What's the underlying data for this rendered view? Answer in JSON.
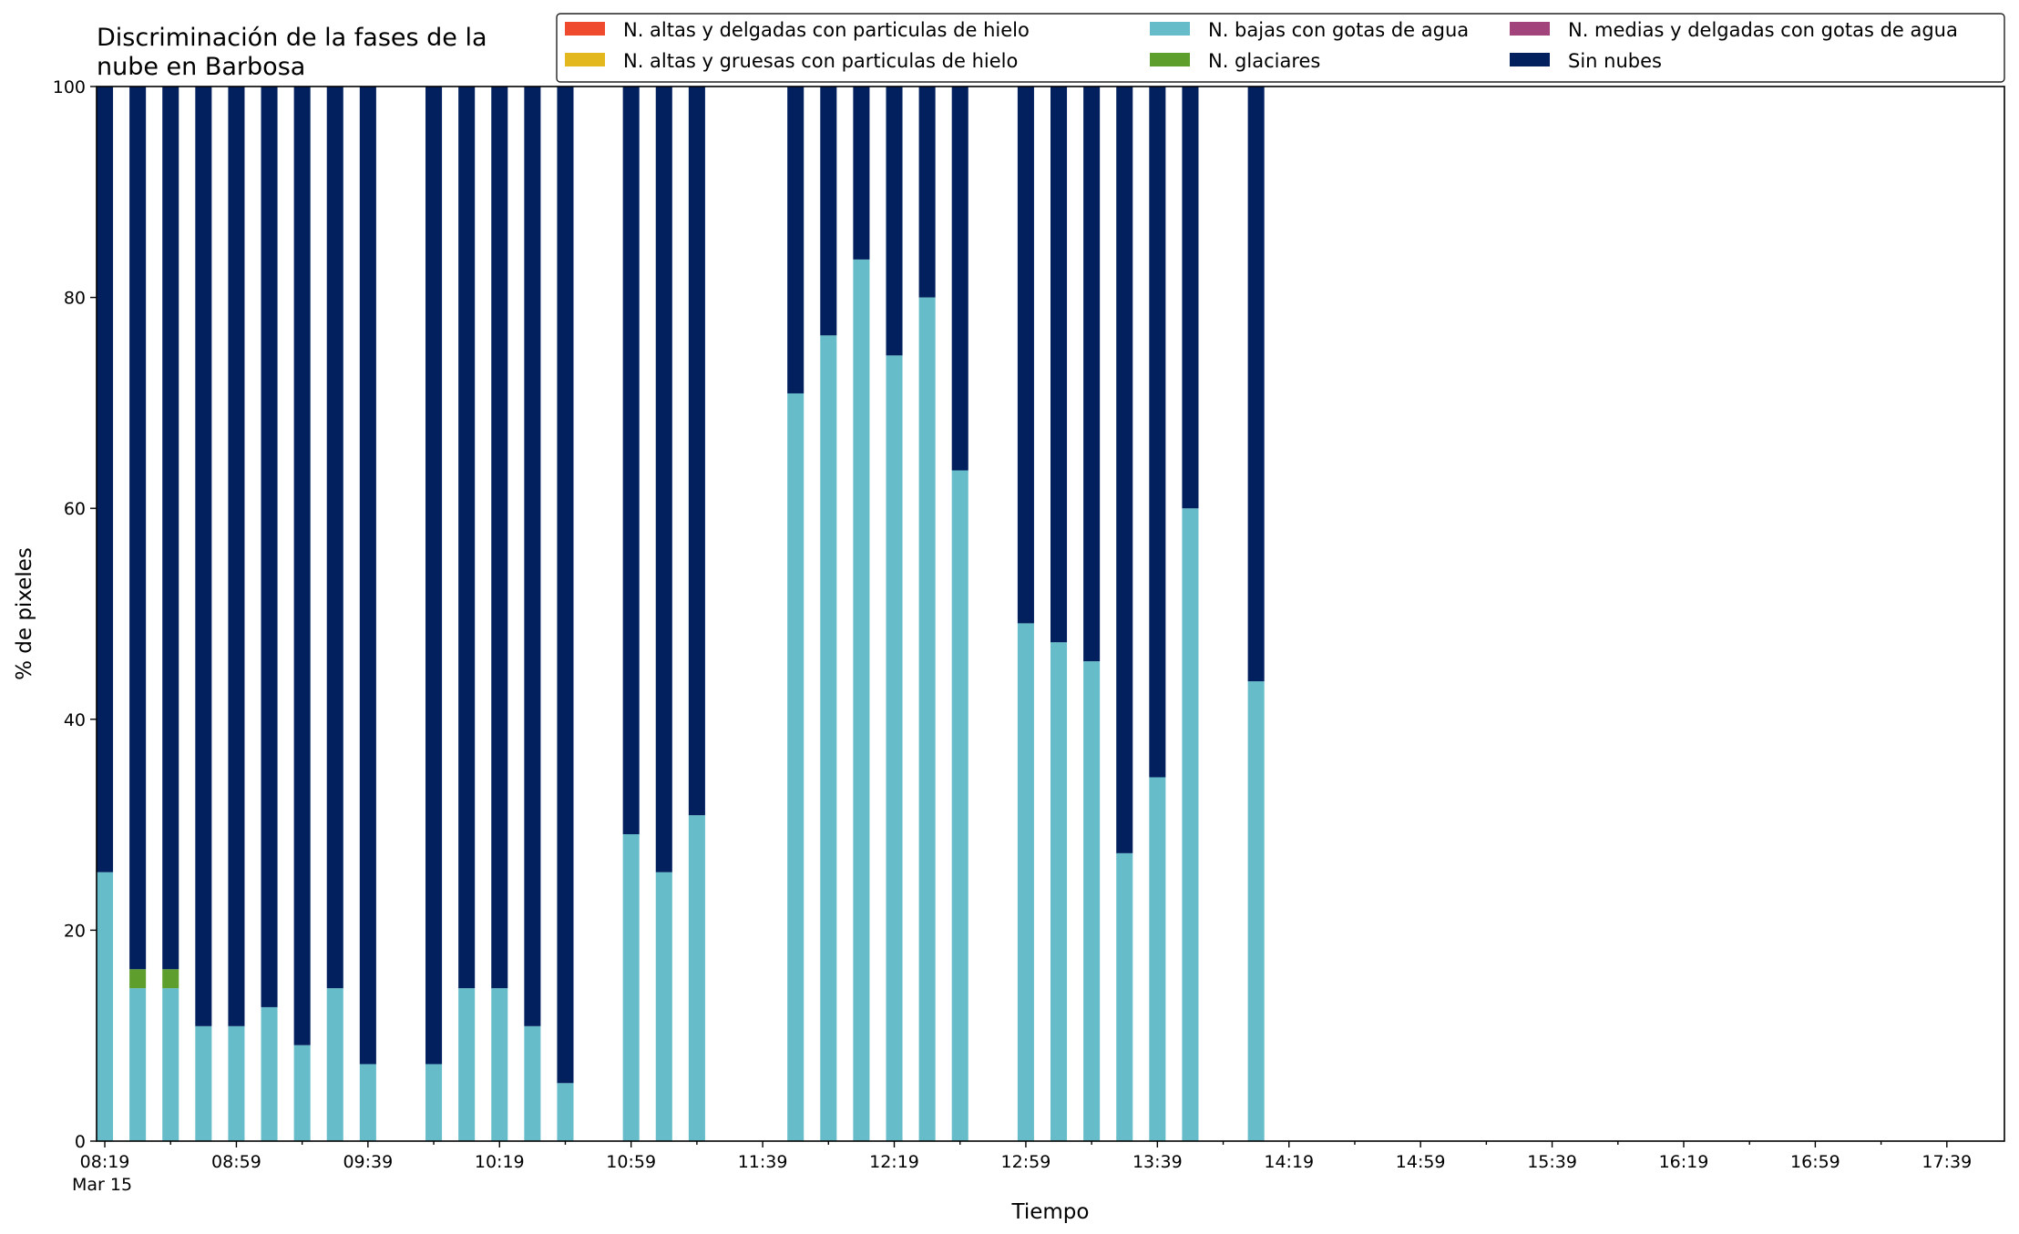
{
  "chart_data": {
    "type": "bar",
    "stacked": true,
    "title": "Discriminación de la fases de la\nnube en Barbosa",
    "xlabel": "Tiempo",
    "ylabel": "% de pixeles",
    "ylim": [
      0,
      100
    ],
    "yticks": [
      0,
      20,
      40,
      60,
      80,
      100
    ],
    "x_start": "08:19",
    "x_end": "17:54",
    "x_date_label": "Mar 15",
    "x_tick_labels": [
      "08:19",
      "08:59",
      "09:39",
      "10:19",
      "10:59",
      "11:39",
      "12:19",
      "12:59",
      "13:39",
      "14:19",
      "14:59",
      "15:39",
      "16:19",
      "16:59",
      "17:39"
    ],
    "legend_position": "top-right",
    "grid": false,
    "times": [
      "08:19",
      "08:29",
      "08:39",
      "08:49",
      "08:59",
      "09:09",
      "09:19",
      "09:29",
      "09:39",
      "09:59",
      "10:09",
      "10:19",
      "10:29",
      "10:39",
      "10:59",
      "11:09",
      "11:19",
      "11:49",
      "11:59",
      "12:09",
      "12:19",
      "12:29",
      "12:39",
      "12:59",
      "13:09",
      "13:19",
      "13:29",
      "13:39",
      "13:49",
      "14:09"
    ],
    "series": [
      {
        "name": "N. altas y delgadas con particulas de hielo",
        "color": "#ef4a2d",
        "values": [
          0,
          0,
          0,
          0,
          0,
          0,
          0,
          0,
          0,
          0,
          0,
          0,
          0,
          0,
          0,
          0,
          0,
          0,
          0,
          0,
          0,
          0,
          0,
          0,
          0,
          0,
          0,
          0,
          0,
          0
        ]
      },
      {
        "name": "N. altas y gruesas con particulas de hielo",
        "color": "#e3b81f",
        "values": [
          0,
          0,
          0,
          0,
          0,
          0,
          0,
          0,
          0,
          0,
          0,
          0,
          0,
          0,
          0,
          0,
          0,
          0,
          0,
          0,
          0,
          0,
          0,
          0,
          0,
          0,
          0,
          0,
          0,
          0
        ]
      },
      {
        "name": "N. bajas con gotas de agua",
        "color": "#66bdc9",
        "values": [
          25.5,
          14.5,
          14.5,
          10.9,
          10.9,
          12.7,
          9.1,
          14.5,
          7.3,
          7.3,
          14.5,
          14.5,
          10.9,
          5.5,
          29.1,
          25.5,
          30.9,
          70.9,
          76.4,
          83.6,
          74.5,
          80.0,
          63.6,
          49.1,
          47.3,
          45.5,
          27.3,
          34.5,
          60.0,
          43.6
        ]
      },
      {
        "name": "N. glaciares",
        "color": "#5e9e2d",
        "values": [
          0,
          1.8,
          1.8,
          0,
          0,
          0,
          0,
          0,
          0,
          0,
          0,
          0,
          0,
          0,
          0,
          0,
          0,
          0,
          0,
          0,
          0,
          0,
          0,
          0,
          0,
          0,
          0,
          0,
          0,
          0
        ]
      },
      {
        "name": "N. medias y delgadas con gotas de agua",
        "color": "#a2437b",
        "values": [
          0,
          0,
          0,
          0,
          0,
          0,
          0,
          0,
          0,
          0,
          0,
          0,
          0,
          0,
          0,
          0,
          0,
          0,
          0,
          0,
          0,
          0,
          0,
          0,
          0,
          0,
          0,
          0,
          0,
          0
        ]
      },
      {
        "name": "Sin nubes",
        "color": "#02205e",
        "values": [
          74.5,
          83.7,
          83.7,
          89.1,
          89.1,
          87.3,
          90.9,
          85.5,
          92.7,
          92.7,
          85.5,
          85.5,
          89.1,
          94.5,
          70.9,
          74.5,
          69.1,
          29.1,
          23.6,
          16.4,
          25.5,
          20.0,
          36.4,
          50.9,
          52.7,
          54.5,
          72.7,
          65.5,
          40.0,
          56.4
        ]
      }
    ],
    "legend_order": [
      "N. altas y delgadas con particulas de hielo",
      "N. altas y gruesas con particulas de hielo",
      "N. bajas con gotas de agua",
      "N. glaciares",
      "N. medias y delgadas con gotas de agua",
      "Sin nubes"
    ]
  }
}
